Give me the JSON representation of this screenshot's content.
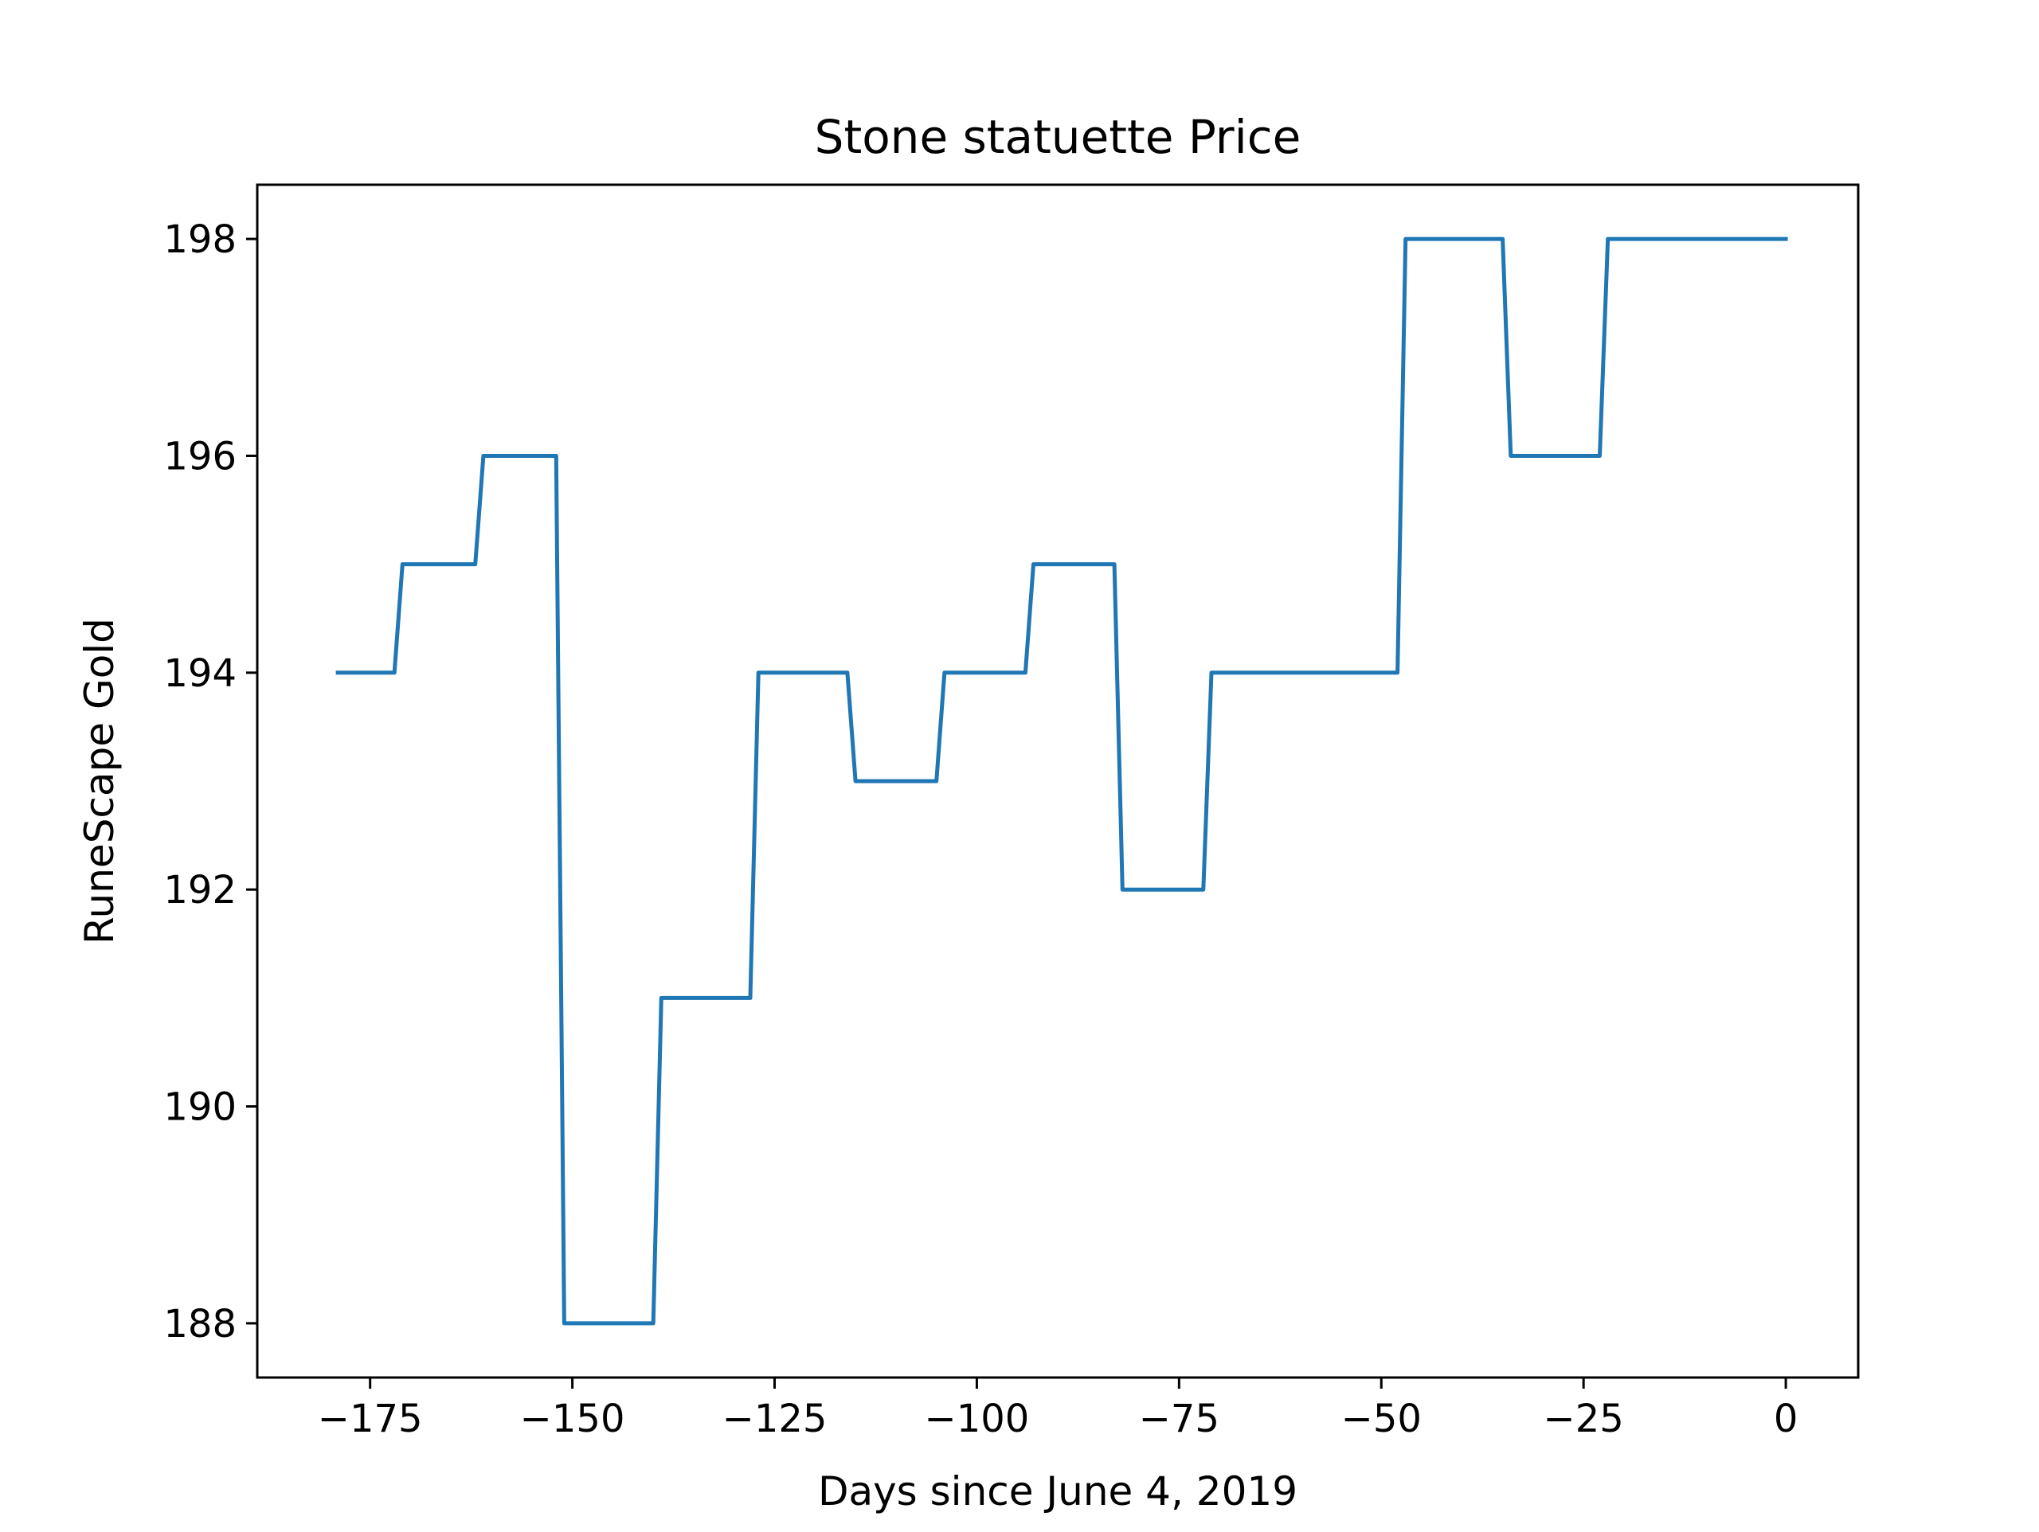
{
  "chart_data": {
    "type": "line",
    "title": "Stone statuette Price",
    "xlabel": "Days since June 4, 2019",
    "ylabel": "RuneScape Gold",
    "xlim": [
      -188.95,
      8.95
    ],
    "ylim": [
      187.5,
      198.5
    ],
    "xticks": [
      -175,
      -150,
      -125,
      -100,
      -75,
      -50,
      -25,
      0
    ],
    "xtick_labels": [
      "−175",
      "−150",
      "−125",
      "−100",
      "−75",
      "−50",
      "−25",
      "0"
    ],
    "yticks": [
      188,
      190,
      192,
      194,
      196,
      198
    ],
    "ytick_labels": [
      "188",
      "190",
      "192",
      "194",
      "196",
      "198"
    ],
    "grid": false,
    "line_color": "#1f77b4",
    "series": [
      {
        "x": [
          -179,
          -172,
          -171,
          -162,
          -161,
          -152,
          -151,
          -140,
          -139,
          -128,
          -127,
          -116,
          -115,
          -105,
          -104,
          -94,
          -93,
          -83,
          -82,
          -72,
          -71,
          -48,
          -47,
          -35,
          -34,
          -23,
          -22,
          0
        ],
        "y": [
          194,
          194,
          195,
          195,
          196,
          196,
          188,
          188,
          191,
          191,
          194,
          194,
          193,
          193,
          194,
          194,
          195,
          195,
          192,
          192,
          194,
          194,
          198,
          198,
          196,
          196,
          198,
          198
        ]
      }
    ]
  }
}
